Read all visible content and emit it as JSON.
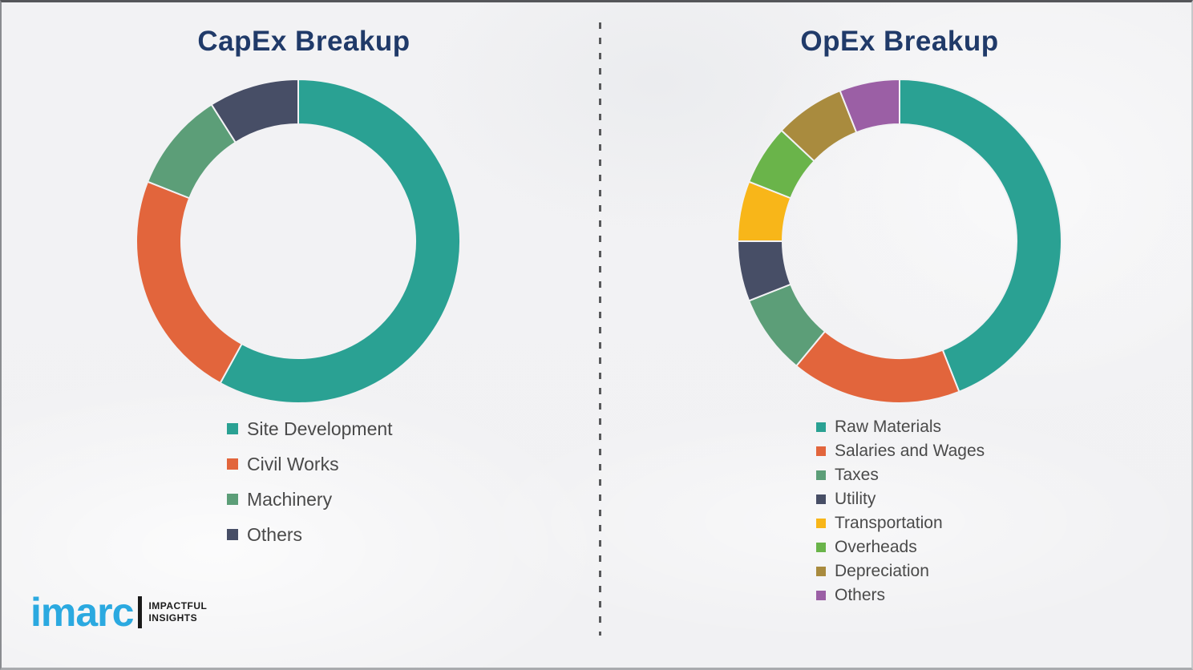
{
  "left_panel": {
    "title": "CapEx Breakup"
  },
  "right_panel": {
    "title": "OpEx Breakup"
  },
  "logo": {
    "brand": "imarc",
    "tagline_line1": "IMPACTFUL",
    "tagline_line2": "INSIGHTS",
    "brand_color": "#2BA9E0"
  },
  "colors": {
    "title_text": "#203A69",
    "legend_text": "#4A4A4A",
    "background": "#F2F2F3",
    "divider": "#58595B",
    "slice_gap_stroke": "#F2F2F4"
  },
  "chart_data": [
    {
      "type": "pie",
      "subtype": "donut",
      "title": "CapEx Breakup",
      "labels": [
        "Site Development",
        "Civil Works",
        "Machinery",
        "Others"
      ],
      "values": [
        58,
        23,
        10,
        9
      ],
      "colors": [
        "#2AA193",
        "#E2653C",
        "#5C9E78",
        "#474E66"
      ],
      "start_angle_deg": 0,
      "direction": "clockwise",
      "legend_position": "below-left"
    },
    {
      "type": "pie",
      "subtype": "donut",
      "title": "OpEx Breakup",
      "labels": [
        "Raw Materials",
        "Salaries and Wages",
        "Taxes",
        "Utility",
        "Transportation",
        "Overheads",
        "Depreciation",
        "Others"
      ],
      "values": [
        44,
        17,
        8,
        6,
        6,
        6,
        7,
        6
      ],
      "colors": [
        "#2AA193",
        "#E2653C",
        "#5C9E78",
        "#474E66",
        "#F8B619",
        "#6AB44A",
        "#A98B3E",
        "#9B5FA5"
      ],
      "start_angle_deg": 0,
      "direction": "clockwise",
      "legend_position": "below-left"
    }
  ]
}
